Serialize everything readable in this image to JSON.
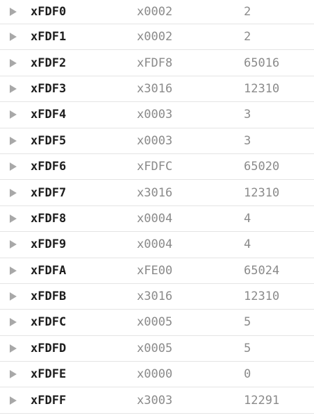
{
  "memory": {
    "rows": [
      {
        "address": "xFDF0",
        "hex": "x0002",
        "decimal": "2"
      },
      {
        "address": "xFDF1",
        "hex": "x0002",
        "decimal": "2"
      },
      {
        "address": "xFDF2",
        "hex": "xFDF8",
        "decimal": "65016"
      },
      {
        "address": "xFDF3",
        "hex": "x3016",
        "decimal": "12310"
      },
      {
        "address": "xFDF4",
        "hex": "x0003",
        "decimal": "3"
      },
      {
        "address": "xFDF5",
        "hex": "x0003",
        "decimal": "3"
      },
      {
        "address": "xFDF6",
        "hex": "xFDFC",
        "decimal": "65020"
      },
      {
        "address": "xFDF7",
        "hex": "x3016",
        "decimal": "12310"
      },
      {
        "address": "xFDF8",
        "hex": "x0004",
        "decimal": "4"
      },
      {
        "address": "xFDF9",
        "hex": "x0004",
        "decimal": "4"
      },
      {
        "address": "xFDFA",
        "hex": "xFE00",
        "decimal": "65024"
      },
      {
        "address": "xFDFB",
        "hex": "x3016",
        "decimal": "12310"
      },
      {
        "address": "xFDFC",
        "hex": "x0005",
        "decimal": "5"
      },
      {
        "address": "xFDFD",
        "hex": "x0005",
        "decimal": "5"
      },
      {
        "address": "xFDFE",
        "hex": "x0000",
        "decimal": "0"
      },
      {
        "address": "xFDFF",
        "hex": "x3003",
        "decimal": "12291"
      }
    ]
  },
  "colors": {
    "address_text": "#1e1e1e",
    "value_text": "#8a8a8a",
    "icon": "#a8a8a8",
    "divider": "#e4e4e4"
  },
  "icons": {
    "row_toggle": "triangle-right-icon"
  }
}
